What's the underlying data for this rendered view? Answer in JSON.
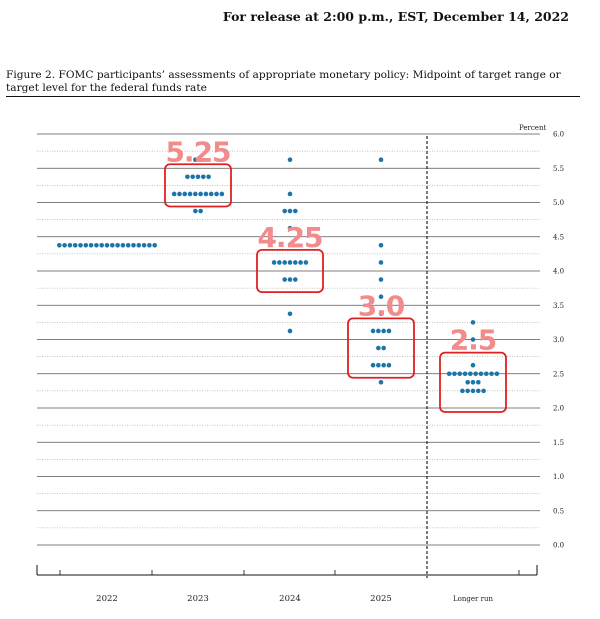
{
  "header": {
    "release_line": "For release at 2:00 p.m., EST, December 14, 2022"
  },
  "figure": {
    "caption": "Figure 2.  FOMC participants’ assessments of appropriate monetary policy:  Midpoint of target range or target level for the federal funds rate"
  },
  "chart_data": {
    "type": "scatter",
    "subtype": "dot-plot",
    "ylabel": "Percent",
    "ylim": [
      0,
      6.0
    ],
    "y_ticks": [
      "0.0",
      "0.5",
      "1.0",
      "1.5",
      "2.0",
      "2.5",
      "3.0",
      "3.5",
      "4.0",
      "4.5",
      "5.0",
      "5.5",
      "6.0"
    ],
    "categories": [
      "2022",
      "2023",
      "2024",
      "2025",
      "Longer run"
    ],
    "dot_color": "#1b75a8",
    "grid": true,
    "projections": [
      {
        "category": "2022",
        "counts": [
          {
            "value": 4.375,
            "count": 19
          }
        ]
      },
      {
        "category": "2023",
        "counts": [
          {
            "value": 5.625,
            "count": 2
          },
          {
            "value": 5.375,
            "count": 5
          },
          {
            "value": 5.125,
            "count": 10
          },
          {
            "value": 4.875,
            "count": 2
          }
        ]
      },
      {
        "category": "2024",
        "counts": [
          {
            "value": 5.625,
            "count": 1
          },
          {
            "value": 5.125,
            "count": 1
          },
          {
            "value": 4.875,
            "count": 3
          },
          {
            "value": 4.625,
            "count": 1
          },
          {
            "value": 4.125,
            "count": 7
          },
          {
            "value": 3.875,
            "count": 3
          },
          {
            "value": 3.375,
            "count": 1
          },
          {
            "value": 3.125,
            "count": 1
          }
        ]
      },
      {
        "category": "2025",
        "counts": [
          {
            "value": 5.625,
            "count": 1
          },
          {
            "value": 4.375,
            "count": 1
          },
          {
            "value": 4.125,
            "count": 1
          },
          {
            "value": 3.875,
            "count": 1
          },
          {
            "value": 3.625,
            "count": 1
          },
          {
            "value": 3.375,
            "count": 1
          },
          {
            "value": 3.125,
            "count": 4
          },
          {
            "value": 2.875,
            "count": 2
          },
          {
            "value": 2.625,
            "count": 4
          },
          {
            "value": 2.375,
            "count": 1
          }
        ]
      },
      {
        "category": "Longer run",
        "counts": [
          {
            "value": 3.25,
            "count": 1
          },
          {
            "value": 3.0,
            "count": 1
          },
          {
            "value": 2.625,
            "count": 1
          },
          {
            "value": 2.5,
            "count": 10
          },
          {
            "value": 2.375,
            "count": 3
          },
          {
            "value": 2.25,
            "count": 5
          }
        ]
      }
    ],
    "annotations": [
      {
        "text": "5.25",
        "category": "2023",
        "range": [
          5.0,
          5.5
        ]
      },
      {
        "text": "4.25",
        "category": "2024",
        "range": [
          3.75,
          4.25
        ]
      },
      {
        "text": "3.0",
        "category": "2025",
        "range": [
          2.5,
          3.25
        ]
      },
      {
        "text": "2.5",
        "category": "Longer run",
        "range": [
          2.0,
          2.75
        ]
      }
    ],
    "annotation_color": "#e02020",
    "annotation_text_color": "#f28b8b"
  }
}
